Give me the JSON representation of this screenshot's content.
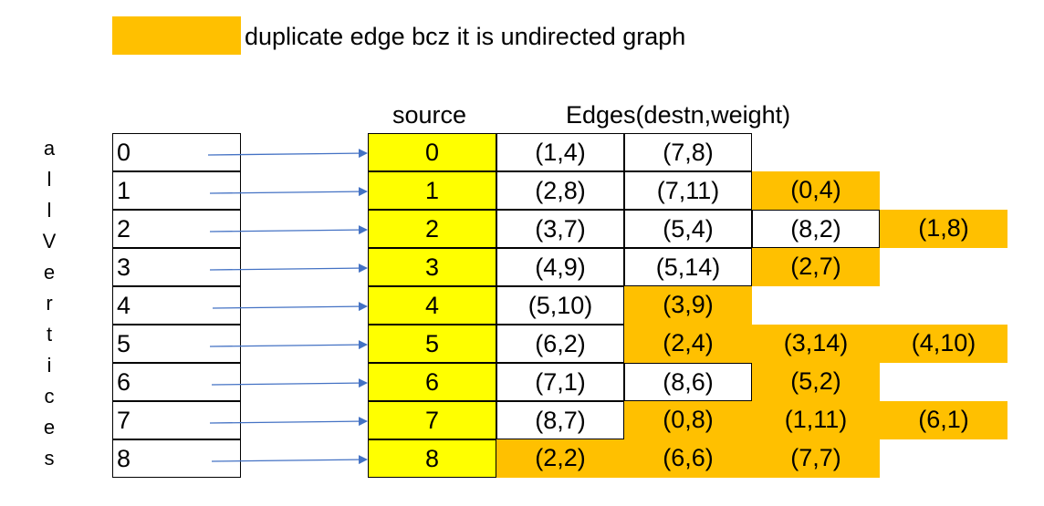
{
  "colors": {
    "duplicate": "#FFC000",
    "source": "#FFFF00",
    "arrow": "#4472C4"
  },
  "legend": {
    "text": "duplicate edge bcz it is undirected graph"
  },
  "headers": {
    "source": "source",
    "edges": "Edges(destn,weight)"
  },
  "side_label": [
    "a",
    "l",
    "l",
    "V",
    "e",
    "r",
    "t",
    "i",
    "c",
    "e",
    "s"
  ],
  "rows": [
    {
      "vertex": "0",
      "source": "0",
      "edges": [
        {
          "label": "(1,4)",
          "duplicate": false
        },
        {
          "label": "(7,8)",
          "duplicate": false
        }
      ]
    },
    {
      "vertex": "1",
      "source": "1",
      "edges": [
        {
          "label": "(2,8)",
          "duplicate": false
        },
        {
          "label": "(7,11)",
          "duplicate": false
        },
        {
          "label": "(0,4)",
          "duplicate": true
        }
      ]
    },
    {
      "vertex": "2",
      "source": "2",
      "edges": [
        {
          "label": "(3,7)",
          "duplicate": false
        },
        {
          "label": "(5,4)",
          "duplicate": false
        },
        {
          "label": "(8,2)",
          "duplicate": false
        },
        {
          "label": "(1,8)",
          "duplicate": true
        }
      ]
    },
    {
      "vertex": "3",
      "source": "3",
      "edges": [
        {
          "label": "(4,9)",
          "duplicate": false
        },
        {
          "label": "(5,14)",
          "duplicate": false
        },
        {
          "label": "(2,7)",
          "duplicate": true
        }
      ]
    },
    {
      "vertex": "4",
      "source": "4",
      "edges": [
        {
          "label": "(5,10)",
          "duplicate": false
        },
        {
          "label": "(3,9)",
          "duplicate": true
        }
      ]
    },
    {
      "vertex": "5",
      "source": "5",
      "edges": [
        {
          "label": "(6,2)",
          "duplicate": false
        },
        {
          "label": "(2,4)",
          "duplicate": true
        },
        {
          "label": "(3,14)",
          "duplicate": true
        },
        {
          "label": "(4,10)",
          "duplicate": true
        }
      ]
    },
    {
      "vertex": "6",
      "source": "6",
      "edges": [
        {
          "label": "(7,1)",
          "duplicate": false
        },
        {
          "label": "(8,6)",
          "duplicate": false
        },
        {
          "label": "(5,2)",
          "duplicate": true
        }
      ]
    },
    {
      "vertex": "7",
      "source": "7",
      "edges": [
        {
          "label": "(8,7)",
          "duplicate": false
        },
        {
          "label": "(0,8)",
          "duplicate": true
        },
        {
          "label": "(1,11)",
          "duplicate": true
        },
        {
          "label": "(6,1)",
          "duplicate": true
        }
      ]
    },
    {
      "vertex": "8",
      "source": "8",
      "edges": [
        {
          "label": "(2,2)",
          "duplicate": true
        },
        {
          "label": "(6,6)",
          "duplicate": true
        },
        {
          "label": "(7,7)",
          "duplicate": true
        }
      ]
    }
  ]
}
